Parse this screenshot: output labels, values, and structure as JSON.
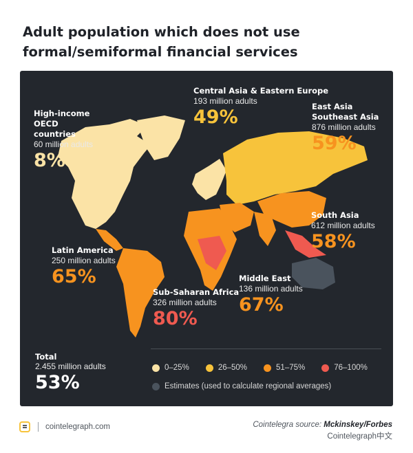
{
  "title": "Adult population which does not use formal/semiformal financial services",
  "regions": {
    "oecd": {
      "name": "High-income OECD countries",
      "adults": "60 million adults",
      "percent": "8%",
      "color": "#fbe3a6"
    },
    "central_asia": {
      "name": "Central Asia & Eastern Europe",
      "adults": "193 million adults",
      "percent": "49%",
      "color": "#f7c33b"
    },
    "east_asia": {
      "name": "East Asia Southeast Asia",
      "adults": "876 million adults",
      "percent": "59%",
      "color": "#f7931f"
    },
    "south_asia": {
      "name": "South Asia",
      "adults": "612 million adults",
      "percent": "58%",
      "color": "#f7931f"
    },
    "latin_america": {
      "name": "Latin America",
      "adults": "250 million adults",
      "percent": "65%",
      "color": "#f7931f"
    },
    "middle_east": {
      "name": "Middle East",
      "adults": "136 million adults",
      "percent": "67%",
      "color": "#f7931f"
    },
    "ssa": {
      "name": "Sub-Saharan Africa",
      "adults": "326 million adults",
      "percent": "80%",
      "color": "#ef5a50"
    }
  },
  "total": {
    "name": "Total",
    "adults": "2.455 million adults",
    "percent": "53%"
  },
  "legend": {
    "items": [
      {
        "label": "0–25%",
        "color": "#fbe3a6"
      },
      {
        "label": "26–50%",
        "color": "#f7c33b"
      },
      {
        "label": "51–75%",
        "color": "#f7931f"
      },
      {
        "label": "76–100%",
        "color": "#ef5a50"
      }
    ],
    "estimate": {
      "label": "Estimates (used to calculate regional averages)",
      "color": "#4a535d"
    }
  },
  "footer": {
    "site": "cointelegraph.com",
    "source_prefix": "Cointelegra",
    "source_mid": " source: ",
    "source_bold": "Mckinskey/Forbes",
    "watermark": "Cointelegraph中文"
  }
}
